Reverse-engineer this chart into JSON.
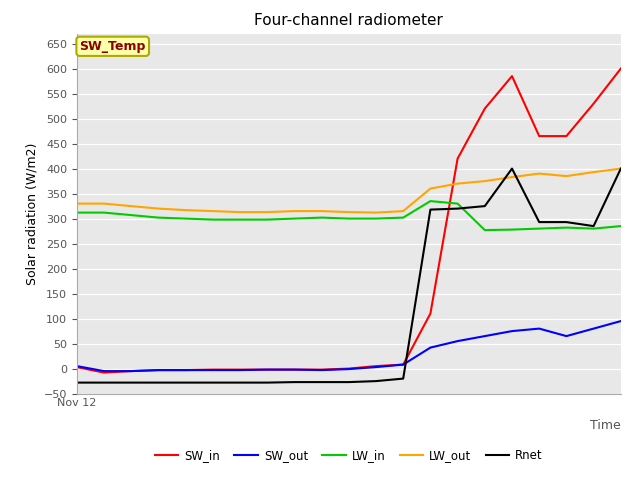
{
  "title": "Four-channel radiometer",
  "xlabel": "Time",
  "ylabel": "Solar radiation (W/m2)",
  "xlim": [
    0,
    20
  ],
  "ylim": [
    -50,
    670
  ],
  "yticks": [
    -50,
    0,
    50,
    100,
    150,
    200,
    250,
    300,
    350,
    400,
    450,
    500,
    550,
    600,
    650
  ],
  "x_tick_label": "Nov 12",
  "annotation_label": "SW_Temp",
  "annotation_color": "#8B0000",
  "annotation_bg": "#FFFFAA",
  "annotation_border": "#AAAA00",
  "SW_in": {
    "x": [
      0,
      1,
      2,
      3,
      4,
      5,
      6,
      7,
      8,
      9,
      10,
      11,
      12,
      13,
      14,
      15,
      16,
      17,
      18,
      19,
      20
    ],
    "y": [
      3,
      -8,
      -5,
      -3,
      -3,
      -2,
      -2,
      -2,
      -2,
      -2,
      0,
      5,
      8,
      110,
      420,
      520,
      585,
      465,
      465,
      530,
      600
    ],
    "color": "#FF0000"
  },
  "SW_out": {
    "x": [
      0,
      1,
      2,
      3,
      4,
      5,
      6,
      7,
      8,
      9,
      10,
      11,
      12,
      13,
      14,
      15,
      16,
      17,
      18,
      19,
      20
    ],
    "y": [
      5,
      -5,
      -5,
      -3,
      -3,
      -3,
      -3,
      -2,
      -2,
      -3,
      -1,
      3,
      8,
      42,
      55,
      65,
      75,
      80,
      65,
      80,
      95
    ],
    "color": "#0000FF"
  },
  "LW_in": {
    "x": [
      0,
      1,
      2,
      3,
      4,
      5,
      6,
      7,
      8,
      9,
      10,
      11,
      12,
      13,
      14,
      15,
      16,
      17,
      18,
      19,
      20
    ],
    "y": [
      312,
      312,
      307,
      302,
      300,
      298,
      298,
      298,
      300,
      302,
      300,
      300,
      302,
      335,
      330,
      277,
      278,
      280,
      282,
      280,
      285
    ],
    "color": "#00CC00"
  },
  "LW_out": {
    "x": [
      0,
      1,
      2,
      3,
      4,
      5,
      6,
      7,
      8,
      9,
      10,
      11,
      12,
      13,
      14,
      15,
      16,
      17,
      18,
      19,
      20
    ],
    "y": [
      330,
      330,
      325,
      320,
      317,
      315,
      313,
      313,
      315,
      315,
      313,
      312,
      315,
      360,
      370,
      375,
      383,
      390,
      385,
      393,
      400
    ],
    "color": "#FFA500"
  },
  "Rnet": {
    "x": [
      0,
      1,
      2,
      3,
      4,
      5,
      6,
      7,
      8,
      9,
      10,
      11,
      12,
      13,
      14,
      15,
      16,
      17,
      18,
      19,
      20
    ],
    "y": [
      -28,
      -28,
      -28,
      -28,
      -28,
      -28,
      -28,
      -28,
      -27,
      -27,
      -27,
      -25,
      -20,
      318,
      320,
      325,
      400,
      293,
      293,
      285,
      400
    ],
    "color": "#000000"
  },
  "plot_bg": "#E8E8E8",
  "fig_bg": "#FFFFFF"
}
